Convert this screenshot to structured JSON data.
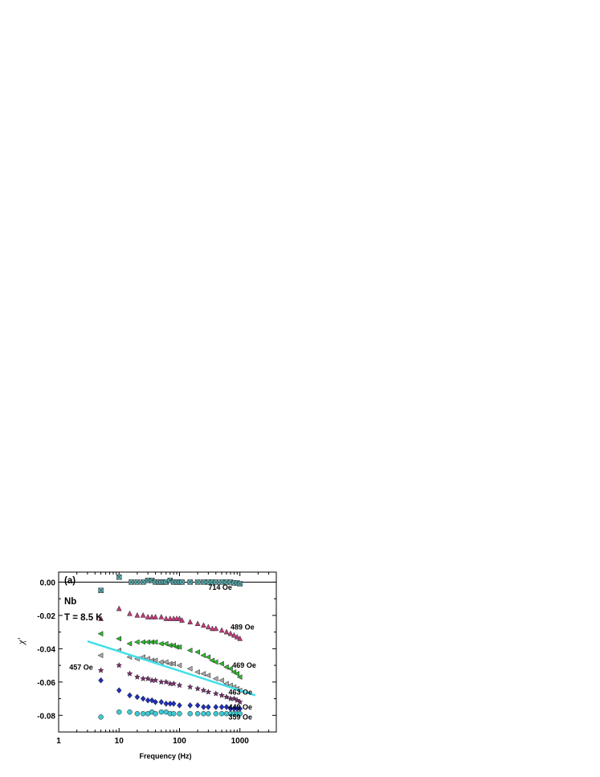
{
  "chart_data": {
    "type": "scatter",
    "panel_label": "(a)",
    "sample_label": "Nb",
    "temperature_label": "T = 8.5 K",
    "xlabel": "Frequency (Hz)",
    "ylabel": "χ'",
    "x_scale": "log",
    "xlim": [
      1,
      4000
    ],
    "ylim": [
      -0.09,
      0.006
    ],
    "x_ticks": [
      1,
      10,
      100,
      1000
    ],
    "x_tick_labels": [
      "1",
      "10",
      "100",
      "1000"
    ],
    "y_ticks": [
      0,
      -0.02,
      -0.04,
      -0.06,
      -0.08
    ],
    "y_tick_labels": [
      "0.00",
      "-0.02",
      "-0.04",
      "-0.06",
      "-0.08"
    ],
    "reference_line_y": 0,
    "series": [
      {
        "name": "714 Oe",
        "marker": "square-x",
        "color": "#5fbcc0",
        "points": [
          [
            5,
            -0.005
          ],
          [
            10,
            0.003
          ],
          [
            16,
            0.0
          ],
          [
            20,
            0.0
          ],
          [
            25,
            0.0
          ],
          [
            30,
            0.001
          ],
          [
            35,
            0.001
          ],
          [
            40,
            0.0
          ],
          [
            45,
            0.0
          ],
          [
            50,
            0.0
          ],
          [
            55,
            0.0
          ],
          [
            60,
            0.0
          ],
          [
            70,
            0.001
          ],
          [
            80,
            0.0
          ],
          [
            90,
            0.0
          ],
          [
            100,
            0.0
          ],
          [
            110,
            0.0
          ],
          [
            150,
            0.0
          ],
          [
            200,
            0.0
          ],
          [
            250,
            0.0
          ],
          [
            300,
            0.0
          ],
          [
            350,
            0.0
          ],
          [
            400,
            0.0
          ],
          [
            500,
            0.0
          ],
          [
            600,
            0.0
          ],
          [
            700,
            0.0
          ],
          [
            800,
            -0.0005
          ],
          [
            900,
            -0.0005
          ],
          [
            1000,
            -0.001
          ]
        ]
      },
      {
        "name": "489 Oe",
        "marker": "triangle-up",
        "color": "#c23b7a",
        "points": [
          [
            5,
            -0.022
          ],
          [
            10,
            -0.016
          ],
          [
            15,
            -0.019
          ],
          [
            20,
            -0.02
          ],
          [
            25,
            -0.02
          ],
          [
            30,
            -0.021
          ],
          [
            35,
            -0.021
          ],
          [
            40,
            -0.021
          ],
          [
            50,
            -0.021
          ],
          [
            60,
            -0.022
          ],
          [
            70,
            -0.022
          ],
          [
            80,
            -0.022
          ],
          [
            90,
            -0.022
          ],
          [
            100,
            -0.022
          ],
          [
            110,
            -0.023
          ],
          [
            150,
            -0.024
          ],
          [
            200,
            -0.025
          ],
          [
            250,
            -0.026
          ],
          [
            300,
            -0.027
          ],
          [
            350,
            -0.028
          ],
          [
            400,
            -0.028
          ],
          [
            500,
            -0.029
          ],
          [
            600,
            -0.03
          ],
          [
            700,
            -0.031
          ],
          [
            800,
            -0.032
          ],
          [
            900,
            -0.033
          ],
          [
            1000,
            -0.034
          ]
        ]
      },
      {
        "name": "469 Oe",
        "marker": "triangle-left",
        "color": "#2eb82e",
        "points": [
          [
            5,
            -0.031
          ],
          [
            10,
            -0.034
          ],
          [
            15,
            -0.037
          ],
          [
            20,
            -0.036
          ],
          [
            25,
            -0.036
          ],
          [
            30,
            -0.036
          ],
          [
            35,
            -0.036
          ],
          [
            40,
            -0.036
          ],
          [
            50,
            -0.037
          ],
          [
            60,
            -0.037
          ],
          [
            70,
            -0.038
          ],
          [
            80,
            -0.038
          ],
          [
            90,
            -0.039
          ],
          [
            100,
            -0.039
          ],
          [
            150,
            -0.041
          ],
          [
            200,
            -0.042
          ],
          [
            250,
            -0.044
          ],
          [
            300,
            -0.045
          ],
          [
            350,
            -0.047
          ],
          [
            400,
            -0.048
          ],
          [
            500,
            -0.049
          ],
          [
            600,
            -0.051
          ],
          [
            700,
            -0.052
          ],
          [
            800,
            -0.054
          ],
          [
            900,
            -0.055
          ],
          [
            1000,
            -0.057
          ]
        ]
      },
      {
        "name": "463 Oe",
        "marker": "triangle-left",
        "color": "#a8a8a8",
        "points": [
          [
            5,
            -0.044
          ],
          [
            10,
            -0.041
          ],
          [
            15,
            -0.045
          ],
          [
            20,
            -0.046
          ],
          [
            25,
            -0.045
          ],
          [
            30,
            -0.046
          ],
          [
            35,
            -0.047
          ],
          [
            40,
            -0.047
          ],
          [
            50,
            -0.048
          ],
          [
            60,
            -0.048
          ],
          [
            70,
            -0.049
          ],
          [
            80,
            -0.049
          ],
          [
            100,
            -0.05
          ],
          [
            150,
            -0.052
          ],
          [
            200,
            -0.054
          ],
          [
            250,
            -0.055
          ],
          [
            300,
            -0.056
          ],
          [
            400,
            -0.058
          ],
          [
            500,
            -0.059
          ],
          [
            600,
            -0.061
          ],
          [
            700,
            -0.062
          ],
          [
            800,
            -0.063
          ],
          [
            900,
            -0.064
          ],
          [
            1000,
            -0.065
          ]
        ]
      },
      {
        "name": "457 Oe",
        "marker": "star",
        "color": "#7a2a6e",
        "points": [
          [
            5,
            -0.053
          ],
          [
            10,
            -0.05
          ],
          [
            15,
            -0.055
          ],
          [
            20,
            -0.057
          ],
          [
            25,
            -0.058
          ],
          [
            30,
            -0.058
          ],
          [
            35,
            -0.059
          ],
          [
            40,
            -0.059
          ],
          [
            50,
            -0.06
          ],
          [
            60,
            -0.06
          ],
          [
            70,
            -0.061
          ],
          [
            80,
            -0.061
          ],
          [
            100,
            -0.062
          ],
          [
            150,
            -0.063
          ],
          [
            200,
            -0.064
          ],
          [
            250,
            -0.065
          ],
          [
            300,
            -0.066
          ],
          [
            400,
            -0.067
          ],
          [
            500,
            -0.068
          ],
          [
            600,
            -0.069
          ],
          [
            700,
            -0.07
          ],
          [
            800,
            -0.07
          ],
          [
            900,
            -0.071
          ],
          [
            1000,
            -0.072
          ]
        ]
      },
      {
        "name": "449 Oe",
        "marker": "diamond",
        "color": "#1f2fb8",
        "points": [
          [
            5,
            -0.059
          ],
          [
            10,
            -0.065
          ],
          [
            15,
            -0.068
          ],
          [
            20,
            -0.069
          ],
          [
            25,
            -0.07
          ],
          [
            30,
            -0.071
          ],
          [
            35,
            -0.071
          ],
          [
            40,
            -0.072
          ],
          [
            50,
            -0.072
          ],
          [
            60,
            -0.073
          ],
          [
            70,
            -0.073
          ],
          [
            80,
            -0.073
          ],
          [
            100,
            -0.074
          ],
          [
            150,
            -0.074
          ],
          [
            200,
            -0.074
          ],
          [
            250,
            -0.075
          ],
          [
            300,
            -0.075
          ],
          [
            400,
            -0.075
          ],
          [
            500,
            -0.075
          ],
          [
            600,
            -0.075
          ],
          [
            700,
            -0.076
          ],
          [
            800,
            -0.076
          ],
          [
            900,
            -0.076
          ],
          [
            1000,
            -0.076
          ]
        ]
      },
      {
        "name": "359 Oe",
        "marker": "circle",
        "color": "#40c8d0",
        "points": [
          [
            5,
            -0.081
          ],
          [
            10,
            -0.078
          ],
          [
            15,
            -0.078
          ],
          [
            20,
            -0.079
          ],
          [
            25,
            -0.079
          ],
          [
            30,
            -0.079
          ],
          [
            35,
            -0.078
          ],
          [
            40,
            -0.079
          ],
          [
            50,
            -0.078
          ],
          [
            60,
            -0.078
          ],
          [
            70,
            -0.079
          ],
          [
            80,
            -0.079
          ],
          [
            100,
            -0.079
          ],
          [
            150,
            -0.079
          ],
          [
            200,
            -0.079
          ],
          [
            250,
            -0.079
          ],
          [
            300,
            -0.079
          ],
          [
            400,
            -0.079
          ],
          [
            500,
            -0.079
          ],
          [
            600,
            -0.079
          ],
          [
            700,
            -0.079
          ],
          [
            800,
            -0.079
          ],
          [
            900,
            -0.079
          ],
          [
            1000,
            -0.079
          ]
        ]
      }
    ],
    "fit_line": {
      "color": "#40e0e8",
      "x": [
        3,
        1800
      ],
      "y": [
        -0.0355,
        -0.068
      ]
    },
    "annotations": [
      {
        "text": "714 Oe",
        "x": 300,
        "y": -0.0045
      },
      {
        "text": "489 Oe",
        "x": 700,
        "y": -0.0285
      },
      {
        "text": "469 Oe",
        "x": 750,
        "y": -0.0515
      },
      {
        "text": "463 Oe",
        "x": 1600,
        "y": -0.0675
      },
      {
        "text": "449 Oe",
        "x": 1600,
        "y": -0.0765
      },
      {
        "text": "359 Oe",
        "x": 1600,
        "y": -0.0825
      },
      {
        "text": "457 Oe",
        "x": 1.5,
        "y": -0.0525
      }
    ]
  }
}
